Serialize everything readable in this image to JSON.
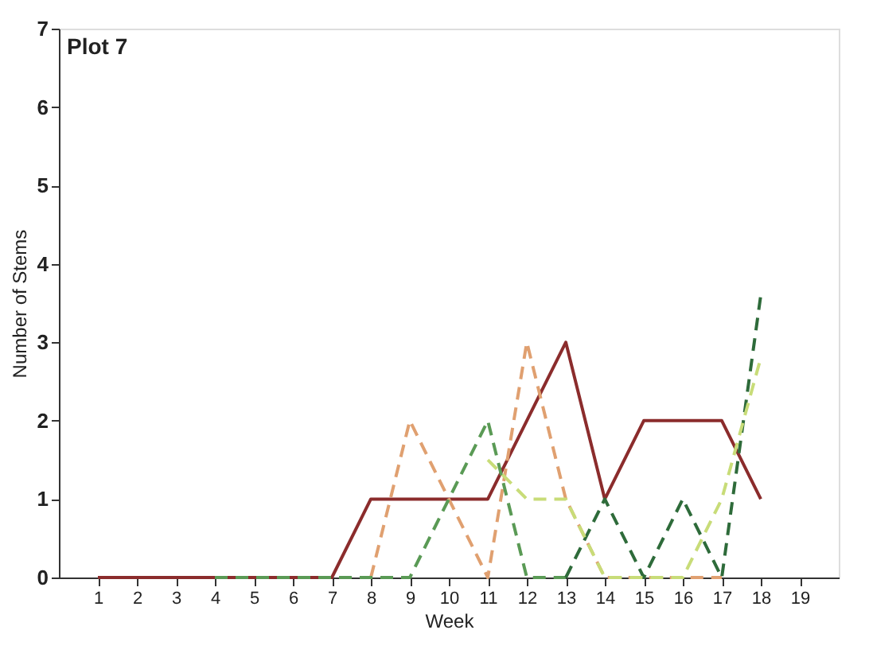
{
  "chart_data": {
    "type": "line",
    "title": "Plot 7",
    "xlabel": "Week",
    "ylabel": "Number of Stems",
    "xlim": [
      0,
      20
    ],
    "ylim": [
      0,
      7
    ],
    "xticks": [
      1,
      2,
      3,
      4,
      5,
      6,
      7,
      8,
      9,
      10,
      11,
      12,
      13,
      14,
      15,
      16,
      17,
      18,
      19
    ],
    "yticks": [
      0,
      1,
      2,
      3,
      4,
      5,
      6,
      7
    ],
    "grid": false,
    "marker": "none",
    "series": [
      {
        "color": "#8b2c2c",
        "line_style": "solid",
        "x": [
          1,
          2,
          3,
          4,
          5,
          6,
          7,
          8,
          9,
          10,
          11,
          12,
          13,
          14,
          15,
          16,
          17,
          18
        ],
        "values": [
          0,
          0,
          0,
          0,
          0,
          0,
          0,
          1,
          1,
          1,
          1,
          2,
          3,
          1,
          2,
          2,
          2,
          1
        ]
      },
      {
        "color": "#e0a070",
        "line_style": "dashed",
        "x": [
          8,
          9,
          10,
          11,
          12,
          13,
          14,
          15,
          16,
          17
        ],
        "values": [
          0,
          2,
          1,
          0,
          3,
          1,
          0,
          0,
          0,
          0
        ]
      },
      {
        "color": "#5a9a55",
        "line_style": "dashed",
        "x": [
          4,
          5,
          6,
          7,
          8,
          9,
          10,
          11,
          12,
          13
        ],
        "values": [
          0,
          0,
          0,
          0,
          0,
          0,
          1,
          2,
          0,
          0
        ]
      },
      {
        "color": "#2e6b3a",
        "line_style": "dashed",
        "x": [
          13,
          14,
          15,
          16,
          17,
          18
        ],
        "values": [
          0,
          1,
          0,
          1,
          0,
          3.6
        ]
      },
      {
        "color": "#c8dc78",
        "line_style": "dashed",
        "x": [
          11,
          12,
          13,
          14,
          15,
          16,
          17,
          18
        ],
        "values": [
          1.5,
          1,
          1,
          0,
          0,
          0,
          1,
          2.8
        ]
      }
    ]
  }
}
